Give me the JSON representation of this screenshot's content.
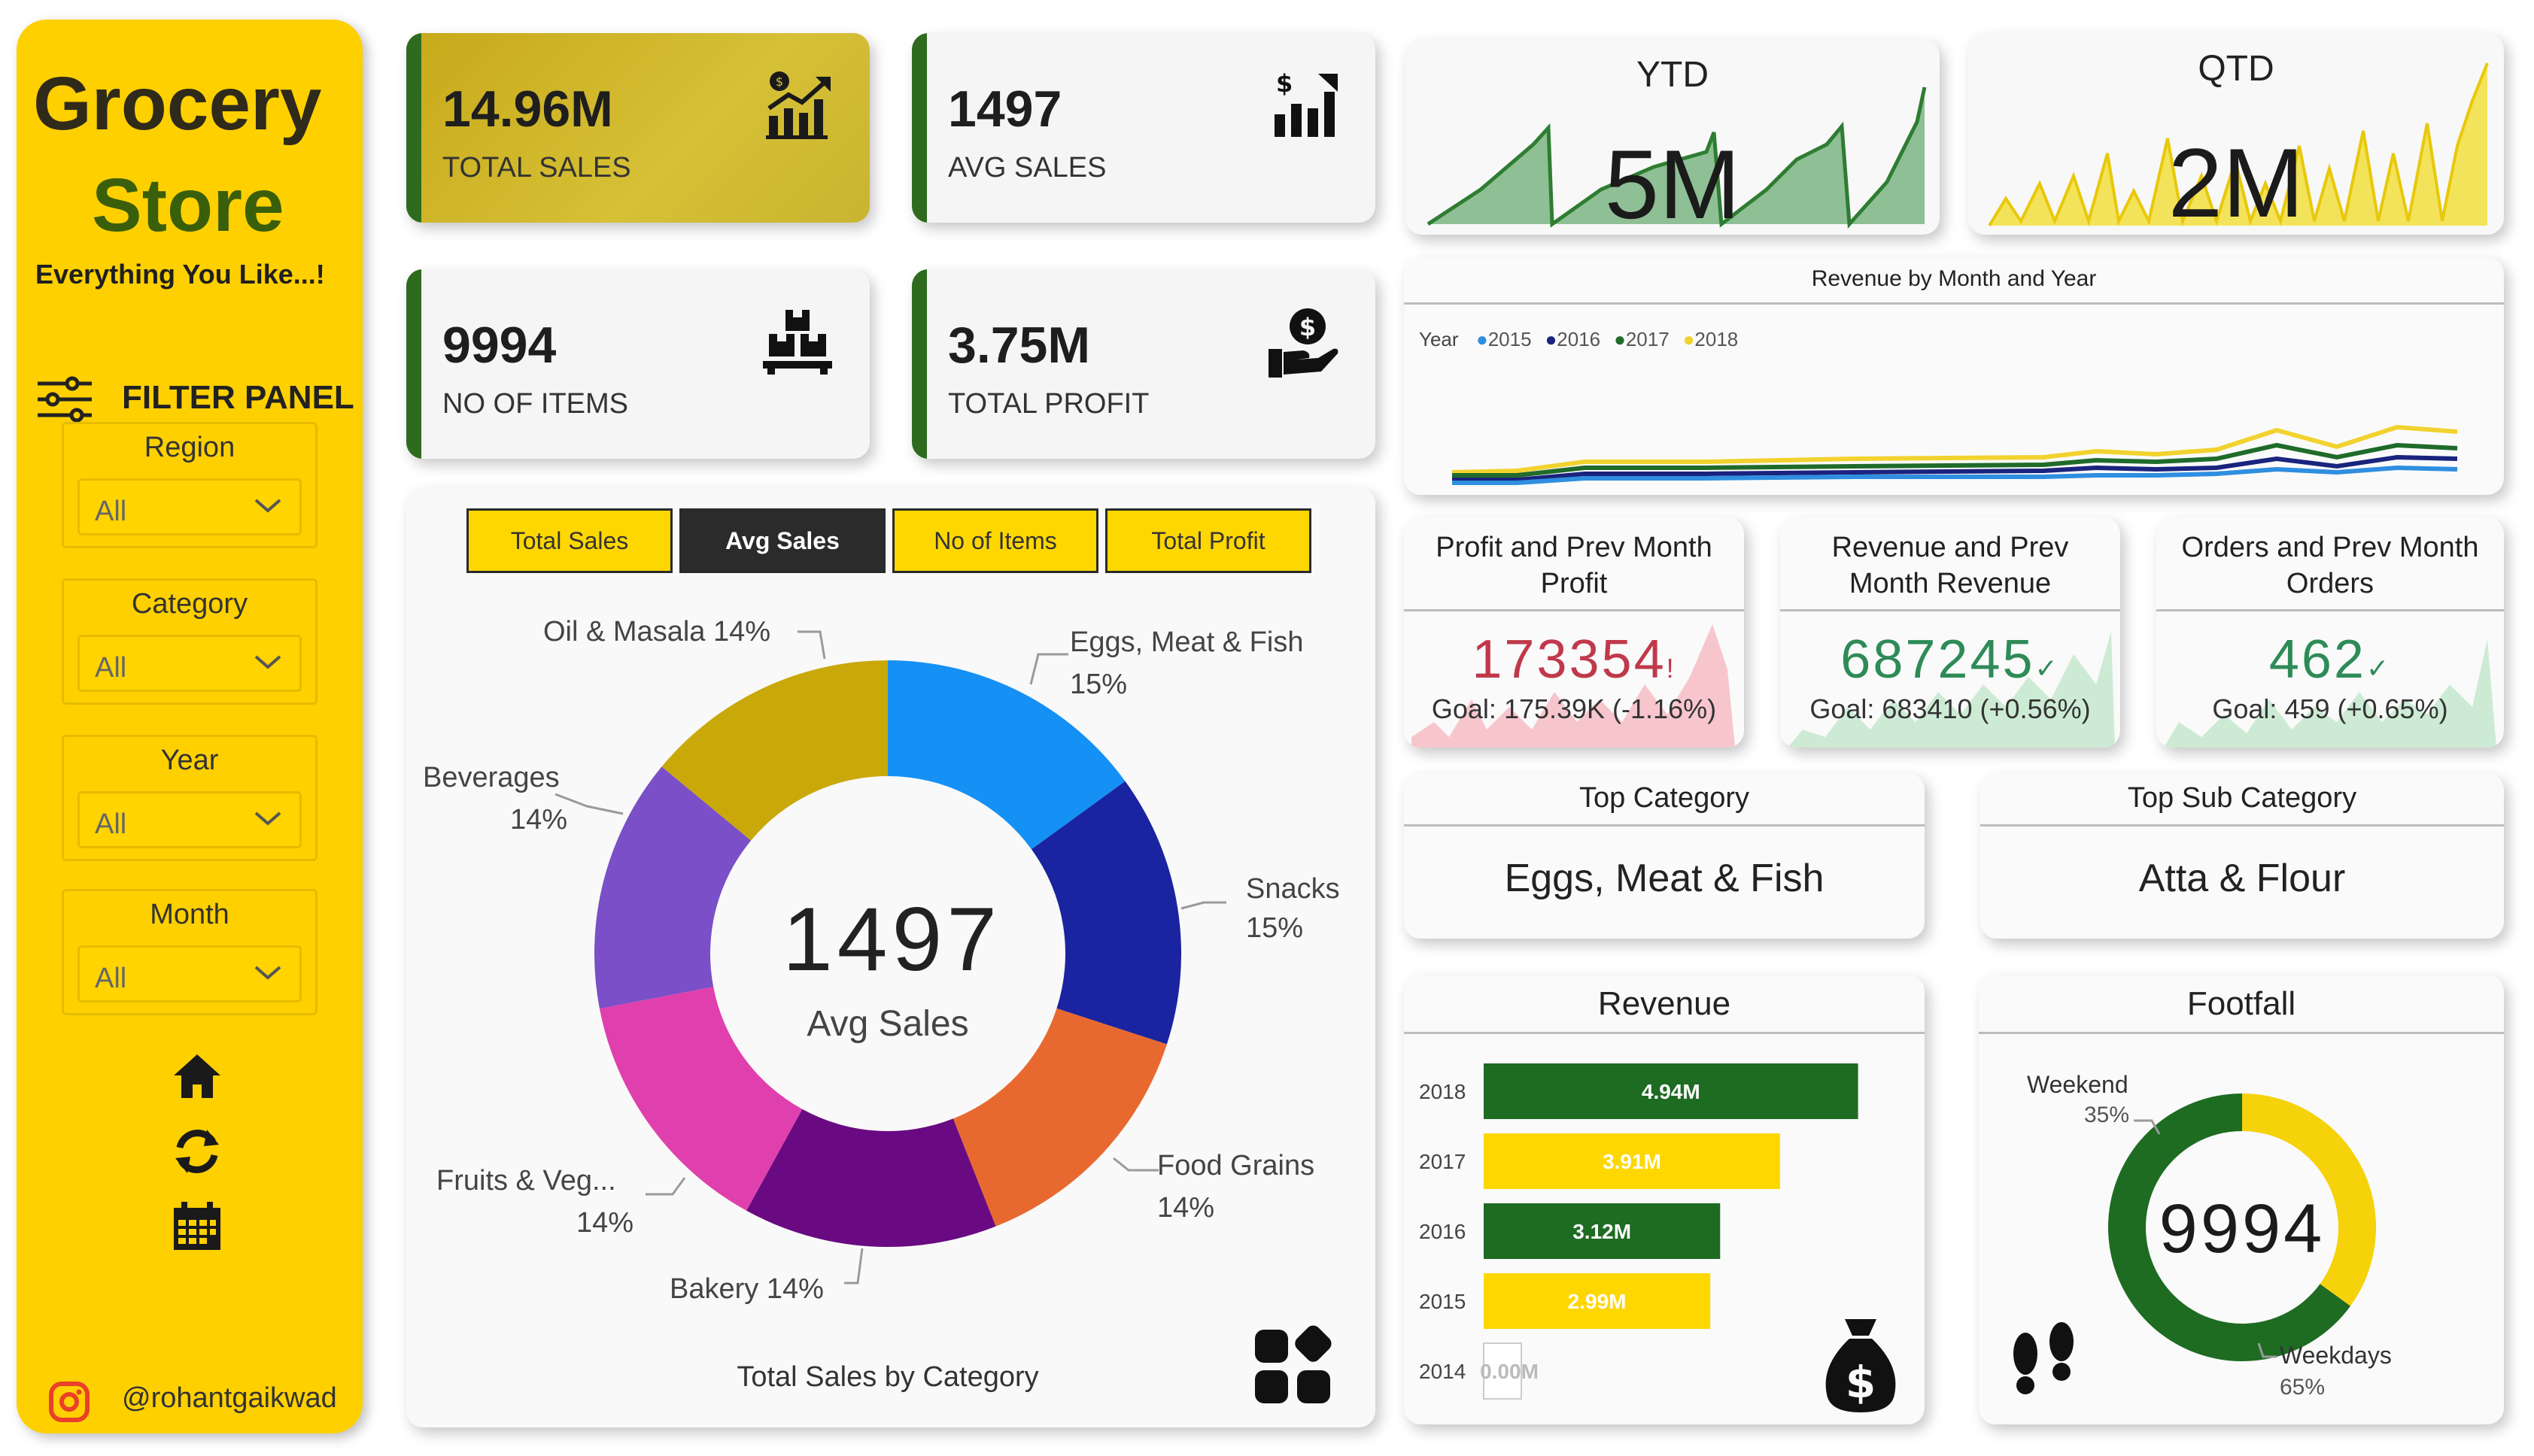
{
  "sidebar": {
    "brand_line1": "Grocery",
    "brand_line2": "Store",
    "tagline": "Everything You Like...!",
    "filter_title": "FILTER PANEL",
    "filters": [
      {
        "label": "Region",
        "value": "All"
      },
      {
        "label": "Category",
        "value": "All"
      },
      {
        "label": "Year",
        "value": "All"
      },
      {
        "label": "Month",
        "value": "All"
      }
    ],
    "nav_icons": [
      "home-icon",
      "refresh-icon",
      "calendar-icon"
    ],
    "handle": "@rohantgaikwad",
    "accent": "#ffd000"
  },
  "kpis": [
    {
      "value": "14.96M",
      "label": "TOTAL SALES",
      "icon": "sales-chart-icon"
    },
    {
      "value": "1497",
      "label": "AVG SALES",
      "icon": "avg-chart-icon"
    },
    {
      "value": "9994",
      "label": "NO OF ITEMS",
      "icon": "boxes-icon"
    },
    {
      "value": "3.75M",
      "label": "TOTAL PROFIT",
      "icon": "money-hand-icon"
    }
  ],
  "category_donut": {
    "tabs": [
      "Total Sales",
      "Avg Sales",
      "No of Items",
      "Total Profit"
    ],
    "active_tab": "Avg Sales",
    "center_value": "1497",
    "center_label": "Avg Sales",
    "caption": "Total Sales by Category",
    "labels": [
      {
        "name": "Oil & Masala",
        "pct": "14%",
        "text": "Oil & Masala 14%"
      },
      {
        "name": "Eggs, Meat & Fish",
        "pct": "15%",
        "text": "Eggs, Meat & Fish"
      },
      {
        "name": "Beverages",
        "pct": "14%",
        "text": "Beverages"
      },
      {
        "name": "Snacks",
        "pct": "15%",
        "text": "Snacks"
      },
      {
        "name": "Food Grains",
        "pct": "14%",
        "text": "Food Grains"
      },
      {
        "name": "Fruits & Veg...",
        "pct": "14%",
        "text": "Fruits & Veg..."
      },
      {
        "name": "Bakery",
        "pct": "14%",
        "text": "Bakery 14%"
      }
    ]
  },
  "ytd": {
    "title": "YTD",
    "value": "5M"
  },
  "qtd": {
    "title": "QTD",
    "value": "2M"
  },
  "revenue_trend": {
    "title": "Revenue by Month and Year",
    "legend_title": "Year",
    "legend": [
      {
        "name": "2015",
        "color": "#2f8ee0"
      },
      {
        "name": "2016",
        "color": "#1a237e"
      },
      {
        "name": "2017",
        "color": "#1f6b2a"
      },
      {
        "name": "2018",
        "color": "#f2d22e"
      }
    ]
  },
  "mini_kpis": [
    {
      "title_line1": "Profit and Prev Month",
      "title_line2": "Profit",
      "value": "173354",
      "mark": "!",
      "goal": "Goal: 175.39K (-1.16%)",
      "value_color": "#c0394b"
    },
    {
      "title_line1": "Revenue and Prev",
      "title_line2": "Month Revenue",
      "value": "687245",
      "mark": "✓",
      "goal": "Goal: 683410 (+0.56%)",
      "value_color": "#2e8b57"
    },
    {
      "title_line1": "Orders and Prev Month",
      "title_line2": "Orders",
      "value": "462",
      "mark": "✓",
      "goal": "Goal: 459 (+0.65%)",
      "value_color": "#2e8b57"
    }
  ],
  "top_category": {
    "title": "Top Category",
    "value": "Eggs, Meat & Fish"
  },
  "top_sub_category": {
    "title": "Top Sub Category",
    "value": "Atta & Flour"
  },
  "revenue_bars": {
    "title": "Revenue",
    "icon": "money-bag-icon"
  },
  "footfall": {
    "title": "Footfall",
    "center_value": "9994",
    "weekend_label": "Weekend",
    "weekend_pct": "35%",
    "weekdays_label": "Weekdays",
    "weekdays_pct": "65%",
    "icon": "footprints-icon"
  },
  "chart_data": [
    {
      "type": "pie",
      "title": "Total Sales by Category",
      "categories": [
        "Eggs, Meat & Fish",
        "Snacks",
        "Food Grains",
        "Bakery",
        "Fruits & Veg...",
        "Beverages",
        "Oil & Masala"
      ],
      "values": [
        15,
        15,
        14,
        14,
        14,
        14,
        14
      ],
      "colors": [
        "#1590f5",
        "#1a24a0",
        "#e8692f",
        "#6a0a82",
        "#e040ad",
        "#7a4fc8",
        "#c9a80a"
      ]
    },
    {
      "type": "bar",
      "title": "Revenue",
      "categories": [
        "2018",
        "2017",
        "2016",
        "2015",
        "2014"
      ],
      "values": [
        4.94,
        3.91,
        3.12,
        2.99,
        0.0
      ],
      "value_labels": [
        "4.94M",
        "3.91M",
        "3.12M",
        "2.99M",
        "0.00M"
      ],
      "colors": [
        "#1e6b22",
        "#ffd700",
        "#1e6b22",
        "#ffd700",
        "#ffffff"
      ],
      "xlim": [
        0,
        5.5
      ]
    },
    {
      "type": "pie",
      "title": "Footfall",
      "categories": [
        "Weekend",
        "Weekdays"
      ],
      "values": [
        35,
        65
      ],
      "colors": [
        "#f5d20a",
        "#1e6b22"
      ]
    }
  ]
}
